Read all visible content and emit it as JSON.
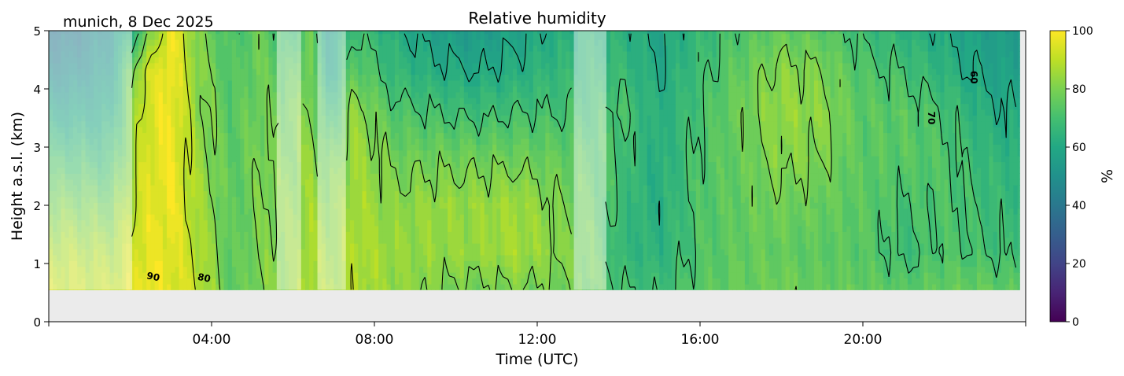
{
  "chart_data": {
    "type": "heatmap",
    "title": "Relative humidity",
    "subtitle": "munich, 8 Dec 2025",
    "xlabel": "Time (UTC)",
    "ylabel": "Height a.s.l. (km)",
    "xlim_hours": [
      0,
      24
    ],
    "ylim": [
      0,
      5
    ],
    "x_ticks": [
      {
        "value": 4,
        "label": "04:00"
      },
      {
        "value": 8,
        "label": "08:00"
      },
      {
        "value": 12,
        "label": "12:00"
      },
      {
        "value": 16,
        "label": "16:00"
      },
      {
        "value": 20,
        "label": "20:00"
      }
    ],
    "y_ticks": [
      {
        "value": 0,
        "label": "0"
      },
      {
        "value": 1,
        "label": "1"
      },
      {
        "value": 2,
        "label": "2"
      },
      {
        "value": 3,
        "label": "3"
      },
      {
        "value": 4,
        "label": "4"
      },
      {
        "value": 5,
        "label": "5"
      }
    ],
    "data_bottom_km": 0.55,
    "data_end_hour": 23.85,
    "colorbar": {
      "label": "%",
      "colormap": "viridis",
      "range": [
        0,
        100
      ],
      "ticks": [
        {
          "value": 0,
          "label": "0"
        },
        {
          "value": 20,
          "label": "20"
        },
        {
          "value": 40,
          "label": "40"
        },
        {
          "value": 60,
          "label": "60"
        },
        {
          "value": 80,
          "label": "80"
        },
        {
          "value": 100,
          "label": "100"
        }
      ]
    },
    "contour_levels": [
      60,
      70,
      80,
      90
    ],
    "contour_labels": [
      {
        "text": "90",
        "hour": 2.55,
        "km": 0.72
      },
      {
        "text": "80",
        "hour": 3.8,
        "km": 0.7
      },
      {
        "text": "70",
        "hour": 21.6,
        "km": 3.5
      },
      {
        "text": "60",
        "hour": 22.65,
        "km": 4.2
      }
    ],
    "masked_periods_hours": [
      [
        0,
        2.05
      ],
      [
        5.6,
        6.2
      ],
      [
        6.6,
        7.3
      ],
      [
        12.9,
        13.7
      ]
    ],
    "profiles": [
      {
        "hour": 0.5,
        "rh": [
          92,
          88,
          80,
          70,
          58,
          48,
          40
        ]
      },
      {
        "hour": 1.5,
        "rh": [
          90,
          86,
          78,
          68,
          60,
          54,
          50
        ]
      },
      {
        "hour": 2.3,
        "rh": [
          98,
          96,
          94,
          93,
          92,
          90,
          72
        ]
      },
      {
        "hour": 3.0,
        "rh": [
          96,
          97,
          98,
          99,
          99,
          99,
          99
        ]
      },
      {
        "hour": 3.7,
        "rh": [
          90,
          88,
          86,
          84,
          82,
          82,
          80
        ]
      },
      {
        "hour": 4.5,
        "rh": [
          74,
          74,
          74,
          74,
          74,
          72,
          70
        ]
      },
      {
        "hour": 5.2,
        "rh": [
          80,
          80,
          80,
          80,
          78,
          78,
          78
        ]
      },
      {
        "hour": 5.9,
        "rh": [
          84,
          83,
          82,
          80,
          78,
          74,
          66
        ]
      },
      {
        "hour": 6.4,
        "rh": [
          88,
          88,
          86,
          84,
          82,
          80,
          78
        ]
      },
      {
        "hour": 6.9,
        "rh": [
          86,
          84,
          82,
          76,
          66,
          58,
          54
        ]
      },
      {
        "hour": 7.5,
        "rh": [
          88,
          88,
          87,
          86,
          84,
          76,
          70
        ]
      },
      {
        "hour": 8.5,
        "rh": [
          84,
          84,
          82,
          78,
          72,
          66,
          62
        ]
      },
      {
        "hour": 9.5,
        "rh": [
          80,
          84,
          84,
          78,
          70,
          62,
          56
        ]
      },
      {
        "hour": 10.5,
        "rh": [
          78,
          84,
          84,
          78,
          68,
          60,
          54
        ]
      },
      {
        "hour": 11.5,
        "rh": [
          80,
          86,
          86,
          78,
          70,
          62,
          58
        ]
      },
      {
        "hour": 12.5,
        "rh": [
          78,
          82,
          80,
          76,
          70,
          66,
          62
        ]
      },
      {
        "hour": 13.3,
        "rh": [
          78,
          78,
          76,
          74,
          70,
          66,
          64
        ]
      },
      {
        "hour": 14.0,
        "rh": [
          70,
          66,
          68,
          70,
          72,
          68,
          64
        ]
      },
      {
        "hour": 15.0,
        "rh": [
          68,
          64,
          62,
          62,
          62,
          60,
          58
        ]
      },
      {
        "hour": 16.0,
        "rh": [
          74,
          72,
          72,
          72,
          70,
          68,
          66
        ]
      },
      {
        "hour": 17.0,
        "rh": [
          76,
          76,
          76,
          76,
          78,
          76,
          72
        ]
      },
      {
        "hour": 18.0,
        "rh": [
          78,
          76,
          78,
          82,
          84,
          82,
          76
        ]
      },
      {
        "hour": 19.0,
        "rh": [
          76,
          74,
          76,
          80,
          82,
          80,
          74
        ]
      },
      {
        "hour": 20.0,
        "rh": [
          76,
          74,
          74,
          74,
          74,
          72,
          68
        ]
      },
      {
        "hour": 21.0,
        "rh": [
          74,
          68,
          70,
          74,
          74,
          70,
          64
        ]
      },
      {
        "hour": 22.0,
        "rh": [
          76,
          72,
          72,
          72,
          70,
          64,
          60
        ]
      },
      {
        "hour": 23.0,
        "rh": [
          76,
          70,
          68,
          66,
          62,
          58,
          56
        ]
      },
      {
        "hour": 23.85,
        "rh": [
          74,
          68,
          66,
          64,
          60,
          56,
          54
        ]
      }
    ],
    "profile_heights_km": [
      0.55,
      1.2,
      2.0,
      2.8,
      3.6,
      4.3,
      5.0
    ]
  }
}
